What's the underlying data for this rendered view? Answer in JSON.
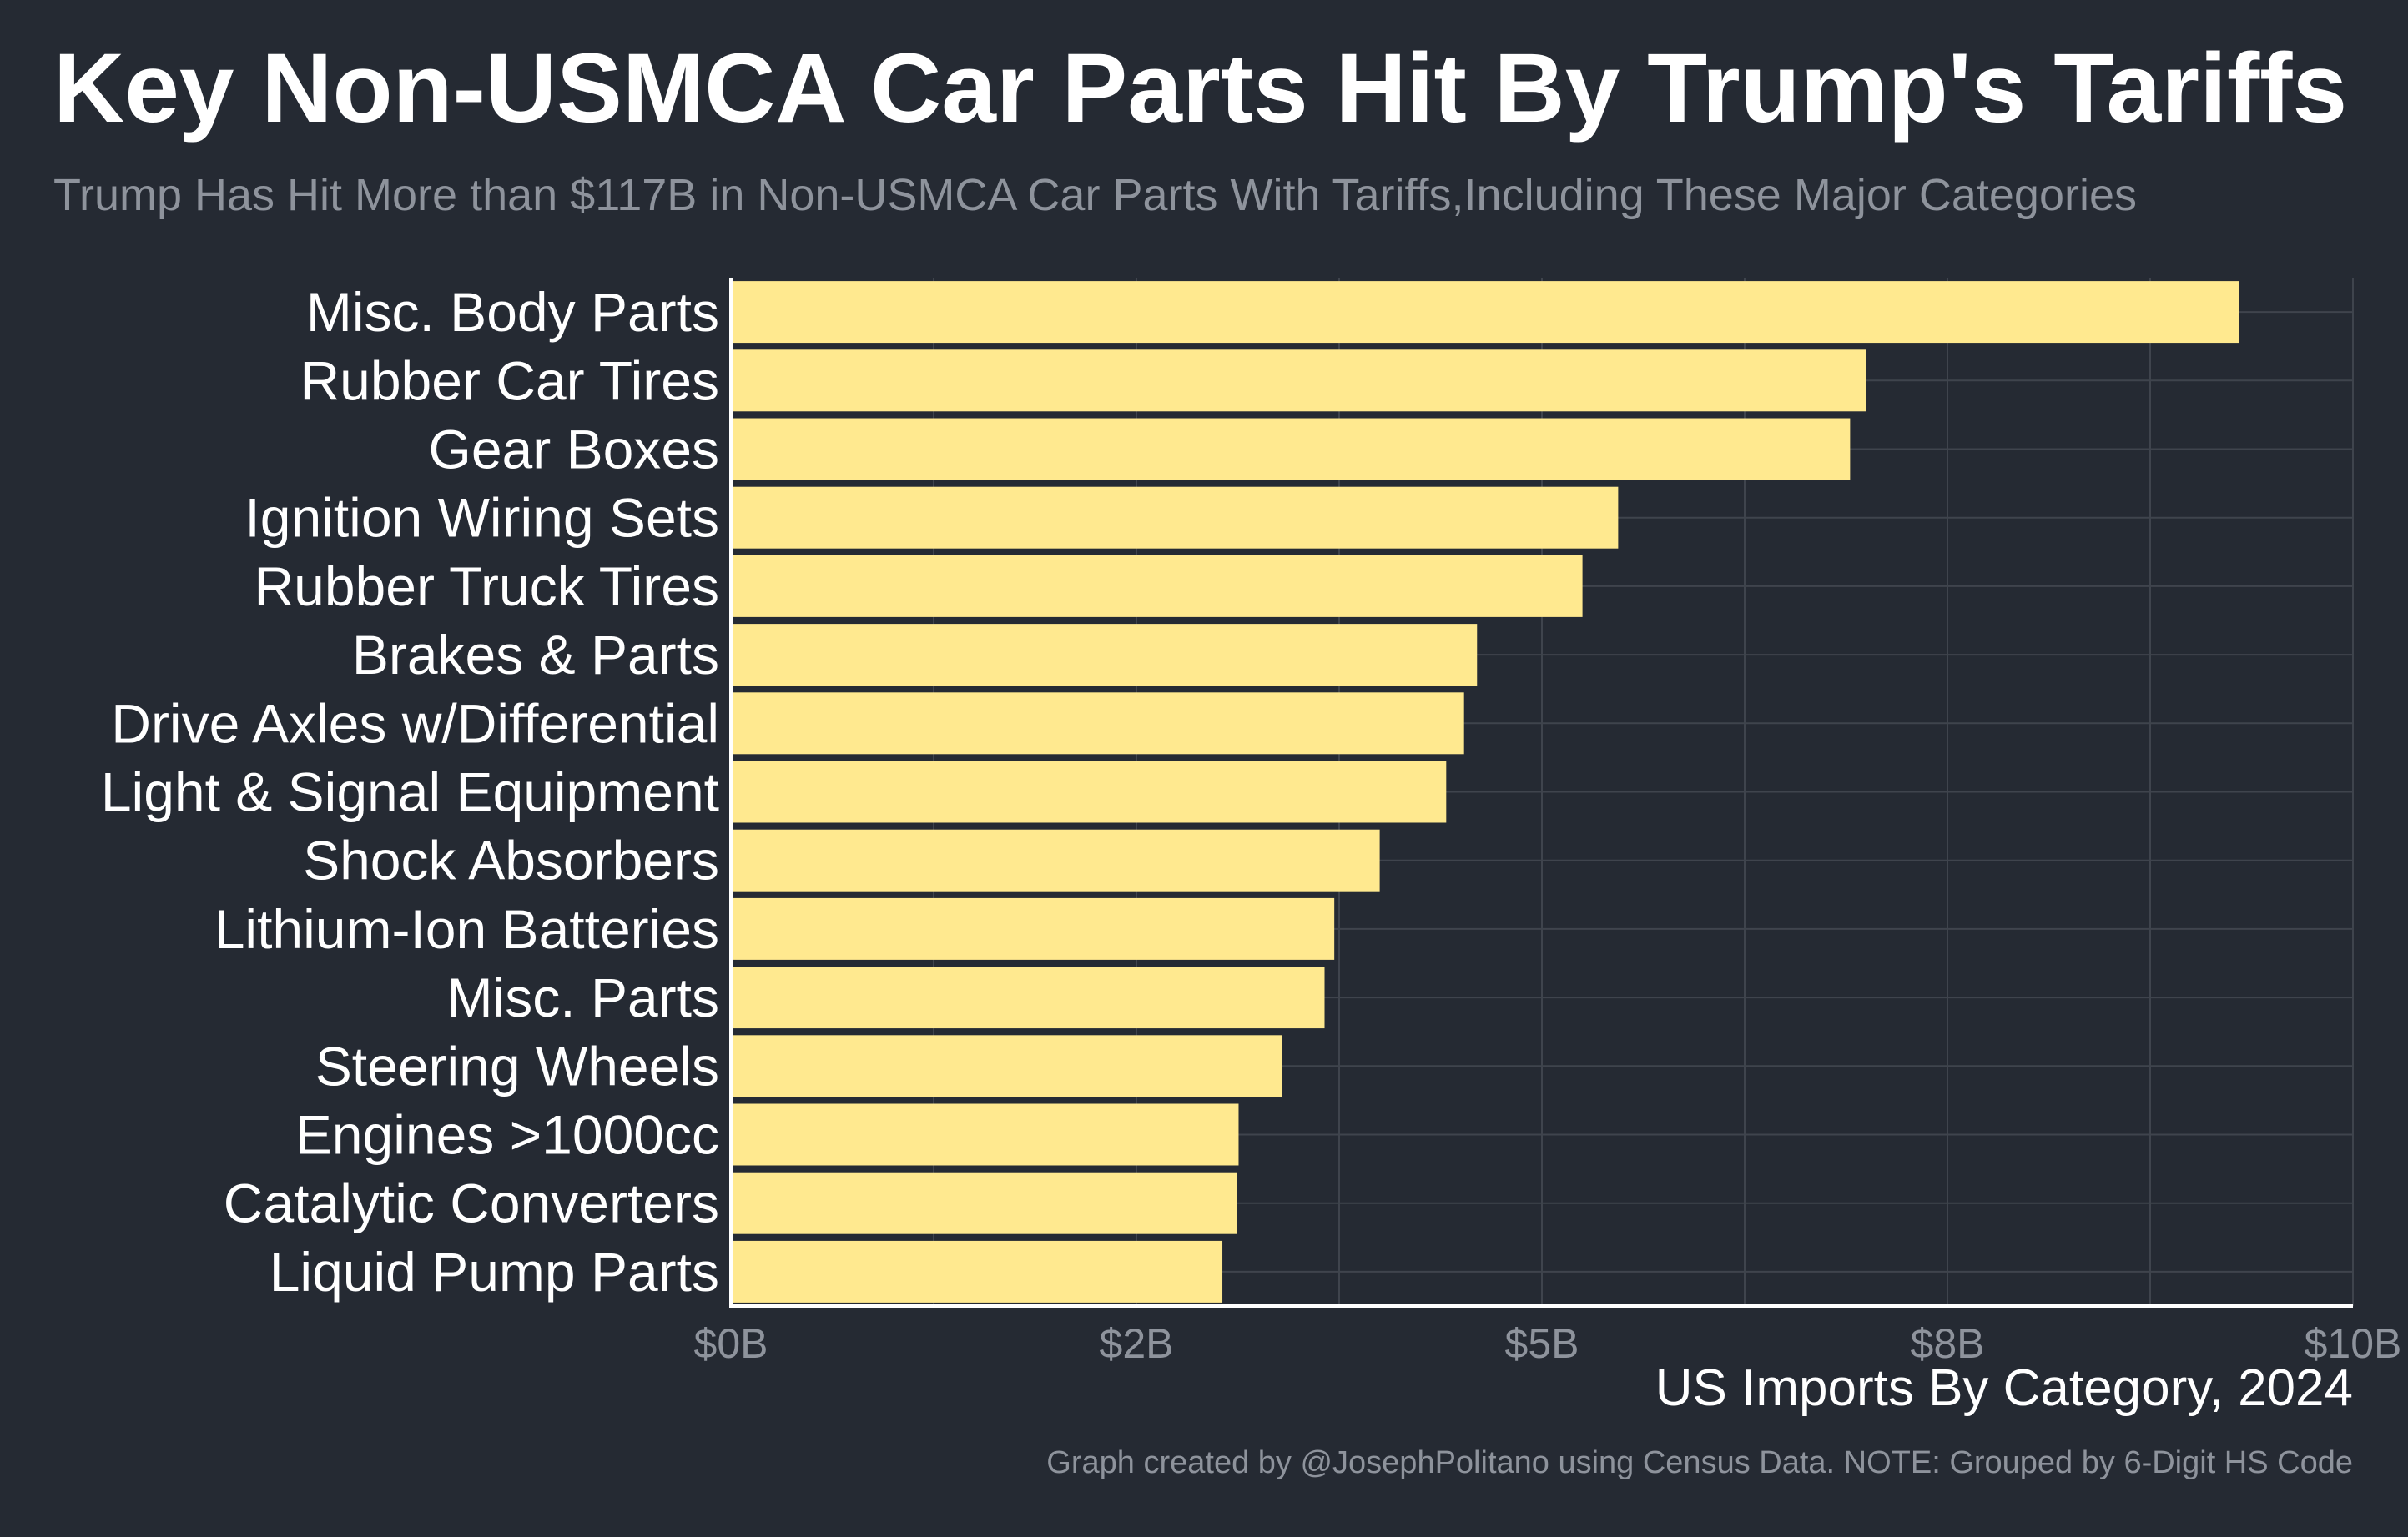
{
  "header": {
    "title": "Key Non-USMCA Car Parts Hit By Trump's Tariffs",
    "subtitle": "Trump Has Hit More than $117B in Non-USMCA Car Parts With Tariffs,Including These Major Categories"
  },
  "footer": {
    "caption": "Graph created by @JosephPolitano using Census Data. NOTE: Grouped by 6-Digit HS Code"
  },
  "colors": {
    "background": "#252a33",
    "bar": "#ffe98f",
    "grid": "#3f444d",
    "axis": "#ffffff",
    "text": "#ffffff",
    "muted": "#8e939c"
  },
  "chart_data": {
    "type": "bar",
    "orientation": "horizontal",
    "title": "Key Non-USMCA Car Parts Hit By Trump's Tariffs",
    "subtitle": "Trump Has Hit More than $117B in Non-USMCA Car Parts With Tariffs,Including These Major Categories",
    "xlabel": "US Imports By Category, 2024",
    "ylabel": "",
    "unit": "billions USD",
    "categories": [
      "Misc. Body Parts",
      "Rubber Car Tires",
      "Gear Boxes",
      "Ignition Wiring Sets",
      "Rubber Truck Tires",
      "Brakes & Parts",
      "Drive Axles w/Differential",
      "Light & Signal Equipment",
      "Shock Absorbers",
      "Lithium-Ion Batteries",
      "Misc. Parts",
      "Steering Wheels",
      "Engines >1000cc",
      "Catalytic Converters",
      "Liquid Pump Parts"
    ],
    "values": [
      9.3,
      7.0,
      6.9,
      5.47,
      5.25,
      4.6,
      4.52,
      4.41,
      4.0,
      3.72,
      3.66,
      3.4,
      3.13,
      3.12,
      3.03
    ],
    "xlim": [
      0,
      10
    ],
    "x_ticks": [
      0,
      2.5,
      5,
      7.5,
      10
    ],
    "x_tick_labels": [
      "$0B",
      "$2B",
      "$5B",
      "$8B",
      "$10B"
    ],
    "grid": true,
    "legend": "none"
  }
}
